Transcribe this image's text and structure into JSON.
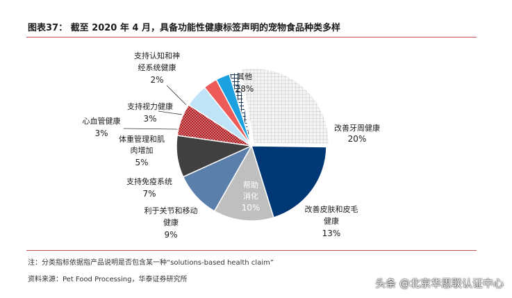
{
  "title": "图表37： 截至 2020 年 4 月，具备功能性健康标签声明的宠物食品种类多样",
  "chart_data": {
    "type": "pie",
    "slices": [
      {
        "label": "其他",
        "value": 28,
        "value_label": "28%",
        "color": "#d9d9d9",
        "pattern": "grid"
      },
      {
        "label": "改善牙周健康",
        "value": 20,
        "value_label": "20%",
        "color": "#003876"
      },
      {
        "label": "改善皮肤和皮毛健康",
        "value": 13,
        "value_label": "13%",
        "color": "#bfbfbf"
      },
      {
        "label": "帮助消化",
        "value": 10,
        "value_label": "10%",
        "color": "#5b7fab"
      },
      {
        "label": "利于关节和移动健康",
        "value": 9,
        "value_label": "9%",
        "color": "#404040"
      },
      {
        "label": "支持免疫系统",
        "value": 7,
        "value_label": "7%",
        "color": "#b01c20",
        "pattern": "dots"
      },
      {
        "label": "体重管理和肌肉增加",
        "value": 5,
        "value_label": "5%",
        "color": "#bfe4f7"
      },
      {
        "label": "心血管健康",
        "value": 3,
        "value_label": "3%",
        "color": "#ec5a5a"
      },
      {
        "label": "支持视力健康",
        "value": 3,
        "value_label": "3%",
        "color": "#1ba0e0"
      },
      {
        "label": "支持认知和神经系统健康",
        "value": 2,
        "value_label": "2%",
        "color": "#17365d",
        "pattern": "cross"
      }
    ]
  },
  "labels": {
    "other_name": "其他",
    "dental_name": "改善牙周健康",
    "skin_name_1": "改善皮肤和皮毛",
    "skin_name_2": "健康",
    "digest_name_1": "帮助",
    "digest_name_2": "消化",
    "joint_name_1": "利于关节和移动",
    "joint_name_2": "健康",
    "immune_name": "支持免疫系统",
    "weight_name_1": "体重管理和肌",
    "weight_name_2": "肉增加",
    "cardio_name": "心血管健康",
    "vision_name": "支持视力健康",
    "cog_name_1": "支持认知和神",
    "cog_name_2": "经系统健康"
  },
  "notes": {
    "note": "注：分类指标依据指产品说明是否包含某一种“solutions-based health claim”",
    "source": "资料来源：Pet Food Processing，华泰证券研究所"
  },
  "watermark": "头条 @北京华思联认证中心"
}
